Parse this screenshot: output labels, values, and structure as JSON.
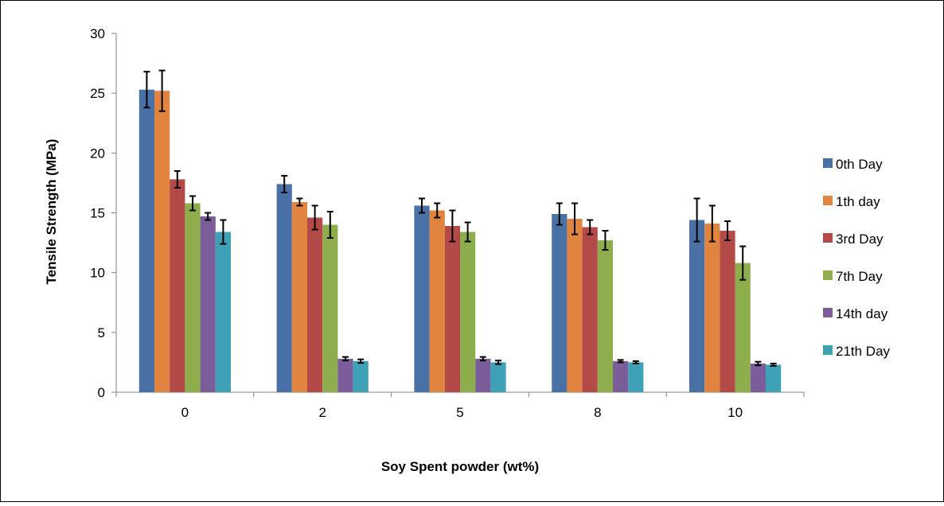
{
  "chart_data": {
    "type": "bar",
    "title": "",
    "xlabel": "Soy Spent powder (wt%)",
    "ylabel": "Tensile Strength (MPa)",
    "ylim": [
      0,
      30
    ],
    "yticks": [
      "0",
      "5",
      "10",
      "15",
      "20",
      "25",
      "30"
    ],
    "categories": [
      "0",
      "2",
      "5",
      "8",
      "10"
    ],
    "grid": false,
    "legend_position": "right",
    "error_bars": true,
    "series": [
      {
        "name": "0th Day",
        "color": "#4a71a6",
        "values": [
          25.3,
          17.4,
          15.6,
          14.9,
          14.4
        ],
        "errors": [
          1.5,
          0.7,
          0.6,
          0.9,
          1.8
        ]
      },
      {
        "name": "1th day",
        "color": "#e0843f",
        "values": [
          25.2,
          15.9,
          15.2,
          14.5,
          14.1
        ],
        "errors": [
          1.7,
          0.3,
          0.6,
          1.3,
          1.5
        ]
      },
      {
        "name": "3rd Day",
        "color": "#b34a47",
        "values": [
          17.8,
          14.6,
          13.9,
          13.8,
          13.5
        ],
        "errors": [
          0.7,
          1.0,
          1.3,
          0.6,
          0.8
        ]
      },
      {
        "name": "7th Day",
        "color": "#8eae4e",
        "values": [
          15.8,
          14.0,
          13.4,
          12.7,
          10.8
        ],
        "errors": [
          0.6,
          1.1,
          0.8,
          0.8,
          1.4
        ]
      },
      {
        "name": "14th day",
        "color": "#7a5d99",
        "values": [
          14.7,
          2.8,
          2.8,
          2.6,
          2.4
        ],
        "errors": [
          0.3,
          0.15,
          0.15,
          0.1,
          0.15
        ]
      },
      {
        "name": "21th Day",
        "color": "#3fa1b6",
        "values": [
          13.4,
          2.6,
          2.5,
          2.5,
          2.3
        ],
        "errors": [
          1.0,
          0.15,
          0.15,
          0.1,
          0.1
        ]
      }
    ]
  }
}
